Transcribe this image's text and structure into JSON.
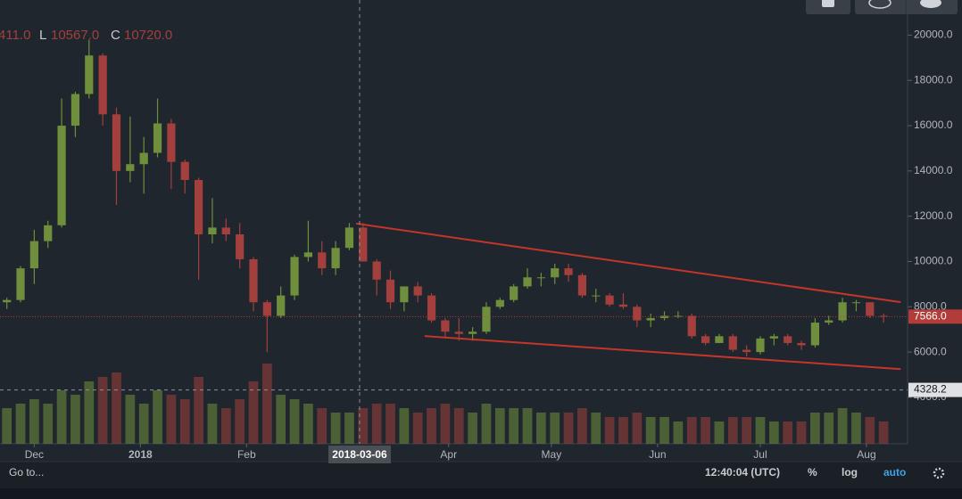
{
  "chart_data": {
    "type": "candlestick",
    "readout": {
      "open_fragment": "411.0",
      "low": {
        "label": "L",
        "value": "10567.0"
      },
      "close": {
        "label": "C",
        "value": "10720.0"
      }
    },
    "x": [
      "2017-11-21",
      "2017-11-25",
      "2017-11-29",
      "2017-12-03",
      "2017-12-07",
      "2017-12-11",
      "2017-12-15",
      "2017-12-19",
      "2017-12-23",
      "2017-12-27",
      "2017-12-31",
      "2018-01-04",
      "2018-01-08",
      "2018-01-12",
      "2018-01-16",
      "2018-01-20",
      "2018-01-24",
      "2018-01-28",
      "2018-02-01",
      "2018-02-05",
      "2018-02-09",
      "2018-02-13",
      "2018-02-17",
      "2018-02-21",
      "2018-02-25",
      "2018-03-01",
      "2018-03-05",
      "2018-03-09",
      "2018-03-13",
      "2018-03-17",
      "2018-03-21",
      "2018-03-25",
      "2018-03-29",
      "2018-04-02",
      "2018-04-06",
      "2018-04-10",
      "2018-04-14",
      "2018-04-18",
      "2018-04-22",
      "2018-04-26",
      "2018-04-30",
      "2018-05-04",
      "2018-05-08",
      "2018-05-12",
      "2018-05-16",
      "2018-05-20",
      "2018-05-24",
      "2018-05-28",
      "2018-06-01",
      "2018-06-05",
      "2018-06-09",
      "2018-06-13",
      "2018-06-17",
      "2018-06-21",
      "2018-06-25",
      "2018-06-29",
      "2018-07-03",
      "2018-07-07",
      "2018-07-11",
      "2018-07-15",
      "2018-07-19",
      "2018-07-23",
      "2018-07-27",
      "2018-07-31",
      "2018-08-04"
    ],
    "open": [
      8200,
      8300,
      9700,
      10900,
      11600,
      16000,
      17400,
      19100,
      16500,
      14000,
      14300,
      14800,
      16100,
      14400,
      13600,
      11200,
      11500,
      11200,
      10100,
      8200,
      7600,
      8500,
      10200,
      10400,
      9700,
      10600,
      11500,
      10000,
      9200,
      8200,
      8900,
      8500,
      7400,
      6900,
      6800,
      6900,
      8000,
      8300,
      8900,
      9300,
      9300,
      9700,
      9400,
      8500,
      8500,
      8100,
      8000,
      7400,
      7500,
      7600,
      7600,
      6700,
      6400,
      6700,
      6100,
      6000,
      6600,
      6700,
      6400,
      6300,
      7300,
      7400,
      8200,
      8200,
      7600
    ],
    "high": [
      8400,
      9800,
      11400,
      11800,
      17200,
      17500,
      19800,
      19200,
      16800,
      16400,
      15500,
      17200,
      16300,
      14500,
      13700,
      12800,
      11900,
      11700,
      10200,
      8300,
      8900,
      10300,
      11800,
      10900,
      10900,
      11700,
      11700,
      10100,
      9600,
      8900,
      9100,
      8600,
      7500,
      7500,
      7100,
      8200,
      8400,
      9000,
      9700,
      9500,
      9900,
      9900,
      9500,
      8800,
      8600,
      8600,
      8100,
      7700,
      7800,
      7800,
      7700,
      6800,
      6800,
      6800,
      6300,
      6700,
      6800,
      6800,
      6500,
      7500,
      7600,
      8400,
      8300,
      8200,
      7700
    ],
    "low": [
      7900,
      8200,
      9000,
      10600,
      11500,
      15500,
      17200,
      16000,
      12500,
      13500,
      13000,
      14600,
      13200,
      13000,
      9200,
      10800,
      10900,
      9700,
      7800,
      6000,
      7500,
      8300,
      10000,
      9400,
      9400,
      10500,
      10000,
      8500,
      7900,
      7800,
      8200,
      7300,
      6600,
      6500,
      6500,
      6800,
      7900,
      8200,
      8800,
      8900,
      9000,
      9100,
      8400,
      8200,
      8000,
      7900,
      7100,
      7100,
      7400,
      7500,
      6600,
      6300,
      6400,
      6000,
      5800,
      5900,
      6300,
      6300,
      6100,
      6200,
      7200,
      7300,
      7800,
      7500,
      7300
    ],
    "close": [
      8300,
      9700,
      10900,
      11600,
      16000,
      17400,
      19100,
      16500,
      14000,
      14300,
      14800,
      16100,
      14400,
      13600,
      11200,
      11500,
      11200,
      10100,
      8200,
      7600,
      8500,
      10200,
      10400,
      9700,
      10600,
      11500,
      10000,
      9200,
      8200,
      8900,
      8500,
      7400,
      6900,
      6800,
      6900,
      8000,
      8300,
      8900,
      9300,
      9300,
      9700,
      9400,
      8500,
      8500,
      8100,
      8000,
      7400,
      7500,
      7600,
      7600,
      6700,
      6400,
      6700,
      6100,
      6000,
      6600,
      6700,
      6400,
      6300,
      7300,
      7400,
      8200,
      8200,
      7600,
      7566
    ],
    "volume": [
      40,
      45,
      50,
      45,
      60,
      55,
      70,
      75,
      80,
      55,
      45,
      60,
      55,
      50,
      75,
      45,
      40,
      50,
      70,
      90,
      55,
      50,
      45,
      40,
      35,
      35,
      40,
      45,
      45,
      40,
      35,
      40,
      45,
      40,
      35,
      45,
      40,
      40,
      40,
      35,
      35,
      35,
      40,
      35,
      30,
      30,
      35,
      30,
      30,
      25,
      30,
      30,
      25,
      30,
      30,
      30,
      25,
      25,
      25,
      35,
      35,
      40,
      35,
      30,
      25
    ],
    "up_color": "#6f8f3c",
    "down_color": "#a3403d",
    "xlim": [
      "2017-11-21",
      "2018-08-13"
    ],
    "xticks": [
      {
        "value": "2017-12-01",
        "label": "Dec"
      },
      {
        "value": "2018-01-01",
        "label": "2018"
      },
      {
        "value": "2018-02-01",
        "label": "Feb"
      },
      {
        "value": "2018-04-01",
        "label": "Apr"
      },
      {
        "value": "2018-05-01",
        "label": "May"
      },
      {
        "value": "2018-06-01",
        "label": "Jun"
      },
      {
        "value": "2018-07-01",
        "label": "Jul"
      },
      {
        "value": "2018-08-01",
        "label": "Aug"
      }
    ],
    "ylim": [
      1950,
      21000
    ],
    "yticks": [
      {
        "value": 20000,
        "label": "20000.0"
      },
      {
        "value": 18000,
        "label": "18000.0"
      },
      {
        "value": 16000,
        "label": "16000.0"
      },
      {
        "value": 14000,
        "label": "14000.0"
      },
      {
        "value": 12000,
        "label": "12000.0"
      },
      {
        "value": 10000,
        "label": "10000.0"
      },
      {
        "value": 8000,
        "label": "8000.0"
      },
      {
        "value": 6000,
        "label": "6000.0"
      },
      {
        "value": 4000,
        "label": "4000.0"
      }
    ],
    "trendlines": [
      {
        "color": "#c4352a",
        "points": [
          [
            "2018-03-05",
            11676
          ],
          [
            "2018-08-11",
            8205
          ]
        ]
      },
      {
        "color": "#c4352a",
        "points": [
          [
            "2018-03-25",
            6706
          ],
          [
            "2018-08-11",
            5246
          ]
        ]
      }
    ],
    "last_price": {
      "value": 7566,
      "label": "7566.0",
      "color": "#b13c3a"
    },
    "crosshair": {
      "x": "2018-03-06",
      "y": {
        "value": 4328.2,
        "label": "4328.2"
      }
    },
    "toolbar": {
      "goto": "Go to...",
      "time": "12:40:04 (UTC)",
      "percent": "%",
      "log": "log",
      "auto": "auto"
    }
  }
}
